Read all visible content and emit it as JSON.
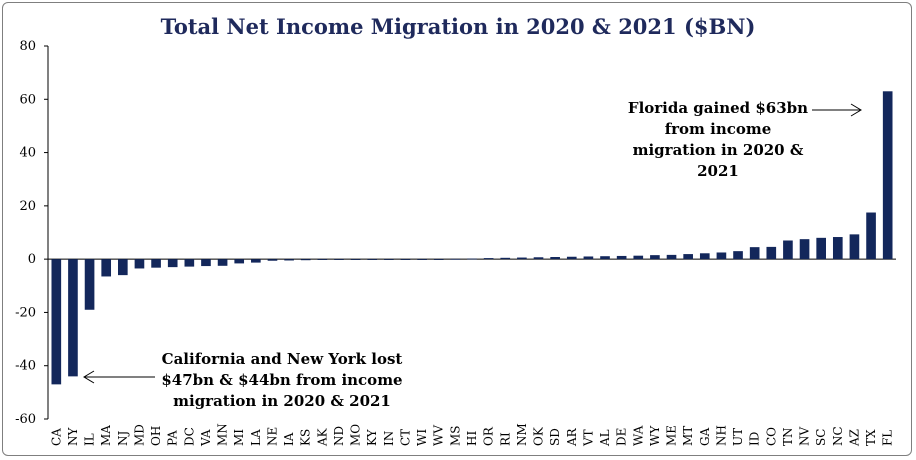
{
  "chart_data": {
    "type": "bar",
    "title": "Total Net Income Migration in 2020 & 2021 ($BN)",
    "xlabel": "",
    "ylabel": "",
    "ylim": [
      -60,
      80
    ],
    "yticks": [
      80,
      60,
      40,
      20,
      0,
      -20,
      -40,
      -60
    ],
    "grid": false,
    "bar_color": "#13275b",
    "categories": [
      "CA",
      "NY",
      "IL",
      "MA",
      "NJ",
      "MD",
      "OH",
      "PA",
      "DC",
      "VA",
      "MN",
      "MI",
      "LA",
      "NE",
      "IA",
      "KS",
      "AK",
      "ND",
      "MO",
      "KY",
      "IN",
      "CT",
      "WI",
      "WV",
      "MS",
      "HI",
      "OR",
      "RI",
      "NM",
      "OK",
      "SD",
      "AR",
      "VT",
      "AL",
      "DE",
      "WA",
      "WY",
      "ME",
      "MT",
      "GA",
      "NH",
      "UT",
      "ID",
      "CO",
      "TN",
      "NV",
      "SC",
      "NC",
      "AZ",
      "TX",
      "FL"
    ],
    "values": [
      -47,
      -44,
      -19,
      -6.5,
      -6,
      -3.5,
      -3.2,
      -3,
      -2.8,
      -2.6,
      -2.5,
      -1.6,
      -1.3,
      -0.6,
      -0.5,
      -0.4,
      -0.3,
      -0.3,
      -0.3,
      -0.2,
      -0.2,
      -0.2,
      -0.1,
      -0.1,
      0.1,
      0.2,
      0.4,
      0.5,
      0.6,
      0.7,
      0.8,
      0.9,
      1.0,
      1.1,
      1.2,
      1.3,
      1.5,
      1.6,
      1.9,
      2.2,
      2.5,
      3.0,
      4.5,
      4.6,
      7.0,
      7.5,
      8.0,
      8.3,
      9.3,
      17.5,
      63
    ]
  },
  "annotations": {
    "florida": [
      "Florida gained $63bn",
      "from income",
      "migration in  2020 &",
      "2021"
    ],
    "california_new_york": [
      "California and New York lost",
      "$47bn & $44bn from income",
      "migration in 2020 & 2021"
    ]
  }
}
